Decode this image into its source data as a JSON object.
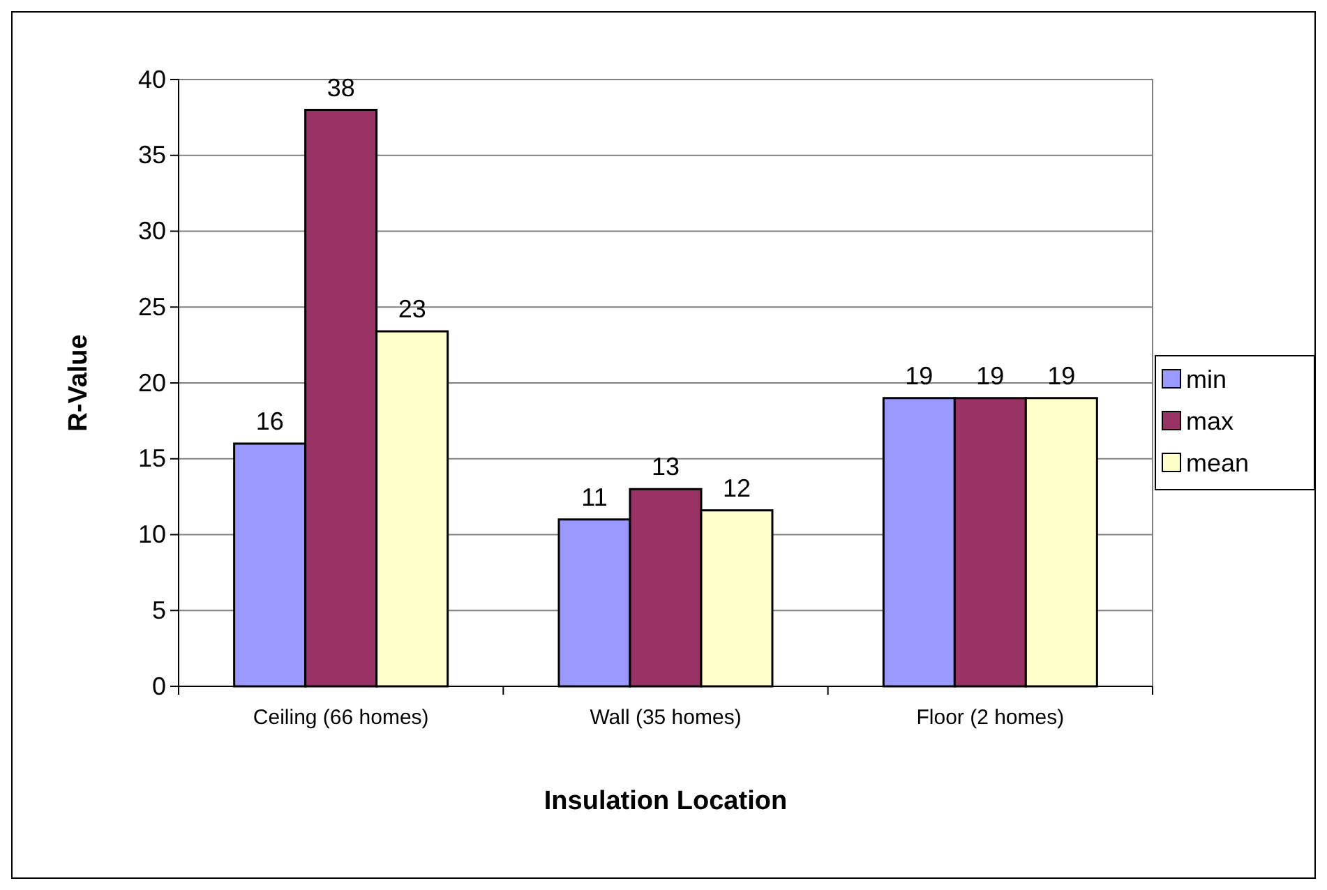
{
  "chart_data": {
    "type": "bar",
    "xlabel": "Insulation Location",
    "ylabel": "R-Value",
    "categories": [
      "Ceiling (66 homes)",
      "Wall (35 homes)",
      "Floor (2 homes)"
    ],
    "series": [
      {
        "name": "min",
        "color": "#9999ff",
        "values": [
          16,
          11,
          19
        ],
        "value_labels": [
          "16",
          "11",
          "19"
        ]
      },
      {
        "name": "max",
        "color": "#993366",
        "values": [
          38,
          13,
          19
        ],
        "value_labels": [
          "38",
          "13",
          "19"
        ]
      },
      {
        "name": "mean",
        "color": "#ffffcc",
        "values": [
          23.4,
          11.6,
          19
        ],
        "value_labels": [
          "23",
          "12",
          "19"
        ]
      }
    ],
    "ylim": [
      0,
      40
    ],
    "yticks": [
      0,
      5,
      10,
      15,
      20,
      25,
      30,
      35,
      40
    ],
    "grid": "y",
    "legend": "right"
  }
}
